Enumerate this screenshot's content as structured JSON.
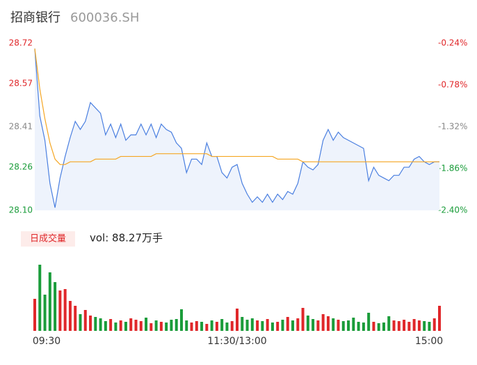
{
  "chart_data": {
    "type": "line",
    "title": "招商银行",
    "subtitle": "600036.SH",
    "categories": [
      "09:30",
      null,
      null,
      null,
      null,
      null,
      null,
      null,
      null,
      null,
      null,
      null,
      null,
      null,
      null,
      null,
      null,
      null,
      null,
      null,
      null,
      null,
      null,
      null,
      null,
      null,
      null,
      null,
      null,
      null,
      null,
      null,
      null,
      null,
      null,
      null,
      null,
      null,
      null,
      null,
      "11:30/13:00",
      null,
      null,
      null,
      null,
      null,
      null,
      null,
      null,
      null,
      null,
      null,
      null,
      null,
      null,
      null,
      null,
      null,
      null,
      null,
      null,
      null,
      null,
      null,
      null,
      null,
      null,
      null,
      null,
      null,
      null,
      null,
      null,
      null,
      null,
      null,
      null,
      null,
      null,
      null,
      "15:00"
    ],
    "series": [
      {
        "color": "#4a7fe0",
        "values": [
          28.7,
          28.45,
          28.36,
          28.2,
          28.11,
          28.22,
          28.3,
          28.37,
          28.43,
          28.4,
          28.43,
          28.5,
          28.48,
          28.46,
          28.38,
          28.42,
          28.37,
          28.42,
          28.36,
          28.38,
          28.38,
          28.42,
          28.38,
          28.42,
          28.37,
          28.42,
          28.4,
          28.39,
          28.35,
          28.33,
          28.24,
          28.29,
          28.29,
          28.27,
          28.35,
          28.3,
          28.3,
          28.24,
          28.22,
          28.26,
          28.27,
          28.2,
          28.16,
          28.13,
          28.15,
          28.13,
          28.16,
          28.13,
          28.16,
          28.14,
          28.17,
          28.16,
          28.2,
          28.28,
          28.26,
          28.25,
          28.27,
          28.36,
          28.4,
          28.36,
          28.39,
          28.37,
          28.36,
          28.35,
          28.34,
          28.33,
          28.21,
          28.26,
          28.23,
          28.22,
          28.21,
          28.23,
          28.23,
          28.26,
          28.26,
          28.29,
          28.3,
          28.28,
          28.27,
          28.28,
          28.28
        ]
      },
      {
        "color": "#f5a623",
        "values": [
          28.7,
          28.55,
          28.44,
          28.35,
          28.29,
          28.27,
          28.27,
          28.28,
          28.28,
          28.28,
          28.28,
          28.28,
          28.29,
          28.29,
          28.29,
          28.29,
          28.29,
          28.3,
          28.3,
          28.3,
          28.3,
          28.3,
          28.3,
          28.3,
          28.31,
          28.31,
          28.31,
          28.31,
          28.31,
          28.31,
          28.31,
          28.31,
          28.31,
          28.31,
          28.31,
          28.3,
          28.3,
          28.3,
          28.3,
          28.3,
          28.3,
          28.3,
          28.3,
          28.3,
          28.3,
          28.3,
          28.3,
          28.3,
          28.29,
          28.29,
          28.29,
          28.29,
          28.29,
          28.28,
          28.28,
          28.28,
          28.28,
          28.28,
          28.28,
          28.28,
          28.28,
          28.28,
          28.28,
          28.28,
          28.28,
          28.28,
          28.28,
          28.28,
          28.28,
          28.28,
          28.28,
          28.28,
          28.28,
          28.28,
          28.28,
          28.28,
          28.28,
          28.28,
          28.28,
          28.28,
          28.28
        ]
      }
    ],
    "ylim": [
      28.1,
      28.72
    ],
    "yticks": [
      {
        "value": 28.1,
        "label": "28.10"
      },
      28.26,
      28.41,
      28.57,
      28.72
    ],
    "ytick_colors": [
      "#1a9c3a",
      "#1a9c3a",
      "#888888",
      "#e0272a",
      "#e0272a"
    ],
    "y2lim": [
      -2.4,
      -0.24
    ],
    "y2ticks": [
      {
        "value": -2.4,
        "label": "-2.40%"
      },
      {
        "value": -1.86,
        "label": "-1.86%"
      },
      {
        "value": -1.32,
        "label": "-1.32%"
      },
      {
        "value": -0.78,
        "label": "-0.78%"
      },
      {
        "value": -0.24,
        "label": "-0.24%"
      }
    ],
    "area_color": "#eef3fc",
    "volume": {
      "title": "日成交量",
      "text": "vol: 88.27万手",
      "up_color": "#e0272a",
      "down_color": "#1a9c3a",
      "values": [
        4.6,
        9.5,
        5.2,
        8.4,
        7.0,
        5.8,
        6.0,
        4.3,
        3.6,
        2.4,
        3.0,
        2.2,
        2.0,
        1.8,
        1.4,
        1.7,
        1.2,
        1.5,
        1.3,
        1.8,
        1.6,
        1.4,
        1.9,
        1.1,
        1.5,
        1.3,
        1.2,
        1.6,
        1.7,
        3.1,
        1.5,
        1.2,
        1.4,
        1.3,
        1.0,
        1.5,
        1.3,
        1.7,
        1.2,
        1.4,
        3.2,
        2.0,
        1.6,
        1.8,
        1.5,
        1.4,
        1.7,
        1.2,
        1.3,
        1.6,
        2.0,
        1.5,
        1.8,
        3.3,
        2.2,
        1.7,
        1.5,
        2.4,
        2.1,
        1.8,
        1.6,
        1.4,
        1.5,
        1.9,
        1.3,
        1.2,
        2.6,
        1.3,
        1.1,
        1.2,
        2.1,
        1.5,
        1.4,
        1.6,
        1.3,
        1.7,
        1.5,
        1.4,
        1.3,
        1.8,
        3.6
      ]
    }
  }
}
